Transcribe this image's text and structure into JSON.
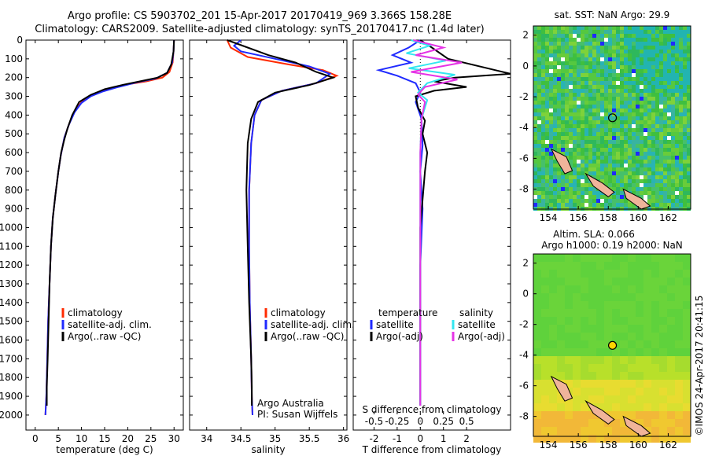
{
  "header": {
    "title_line1": "Argo profile: CS 5903702_201 15-Apr-2017 20170419_969 3.366S 158.28E",
    "title_line2": "Climatology: CARS2009. Satellite-adjusted climatology: synTS_20170417.nc (1.4d later)"
  },
  "colors": {
    "climatology": "#ff2a00",
    "satellite": "#1f2aff",
    "argo": "#000000",
    "satellite_salinity": "#33e6f0",
    "argo_salinity": "#e633e6"
  },
  "depth_axis": {
    "ticks": [
      0,
      100,
      200,
      300,
      400,
      500,
      600,
      700,
      800,
      900,
      1000,
      1100,
      1200,
      1300,
      1400,
      1500,
      1600,
      1700,
      1800,
      1900,
      2000
    ],
    "range": [
      0,
      2080
    ]
  },
  "chart_data": [
    {
      "type": "line",
      "id": "temperature",
      "xlabel": "temperature (deg C)",
      "xticks": [
        0,
        5,
        10,
        15,
        20,
        25,
        30
      ],
      "xlim": [
        -2,
        32
      ],
      "legend": [
        "climatology",
        "satellite-adj. clim.",
        "Argo(..raw -QC)"
      ],
      "series": [
        {
          "name": "climatology",
          "color_key": "climatology",
          "points": [
            [
              30,
              0
            ],
            [
              29.9,
              60
            ],
            [
              29.7,
              120
            ],
            [
              29,
              170
            ],
            [
              27.5,
              200
            ],
            [
              24,
              220
            ],
            [
              19,
              240
            ],
            [
              15,
              265
            ],
            [
              12.5,
              290
            ],
            [
              10,
              330
            ],
            [
              8.5,
              380
            ],
            [
              7.3,
              450
            ],
            [
              6.3,
              520
            ],
            [
              5.5,
              620
            ],
            [
              5,
              700
            ],
            [
              4.4,
              820
            ],
            [
              3.8,
              950
            ],
            [
              3.4,
              1100
            ],
            [
              3.1,
              1300
            ],
            [
              2.8,
              1500
            ],
            [
              2.6,
              1700
            ],
            [
              2.4,
              1900
            ],
            [
              2.2,
              2000
            ]
          ]
        },
        {
          "name": "satellite-adj. clim.",
          "color_key": "satellite",
          "points": [
            [
              30,
              0
            ],
            [
              29.9,
              60
            ],
            [
              29.6,
              120
            ],
            [
              28.5,
              175
            ],
            [
              26,
              205
            ],
            [
              22,
              225
            ],
            [
              18,
              250
            ],
            [
              14.5,
              275
            ],
            [
              12,
              300
            ],
            [
              10,
              335
            ],
            [
              8.5,
              385
            ],
            [
              7.3,
              450
            ],
            [
              6.3,
              520
            ],
            [
              5.5,
              620
            ],
            [
              5,
              700
            ],
            [
              4.4,
              820
            ],
            [
              3.8,
              950
            ],
            [
              3.4,
              1100
            ],
            [
              3.1,
              1300
            ],
            [
              2.8,
              1500
            ],
            [
              2.6,
              1700
            ],
            [
              2.4,
              1900
            ],
            [
              2.2,
              2000
            ]
          ]
        },
        {
          "name": "Argo(..raw -QC)",
          "color_key": "argo",
          "points": [
            [
              30,
              0
            ],
            [
              29.9,
              60
            ],
            [
              29.4,
              130
            ],
            [
              28.5,
              175
            ],
            [
              26.5,
              200
            ],
            [
              23,
              218
            ],
            [
              19,
              238
            ],
            [
              15,
              262
            ],
            [
              12,
              292
            ],
            [
              9.5,
              330
            ],
            [
              8,
              400
            ],
            [
              7,
              470
            ],
            [
              6.3,
              530
            ],
            [
              5.6,
              600
            ],
            [
              5,
              700
            ],
            [
              4.4,
              820
            ],
            [
              3.8,
              950
            ],
            [
              3.4,
              1100
            ],
            [
              3.1,
              1300
            ],
            [
              2.9,
              1500
            ],
            [
              2.7,
              1700
            ],
            [
              2.5,
              1850
            ],
            [
              2.5,
              1950
            ]
          ]
        }
      ]
    },
    {
      "type": "line",
      "id": "salinity",
      "xlabel": "salinity",
      "xticks": [
        34,
        34.5,
        35,
        35.5,
        36
      ],
      "xtick_labels": [
        "34",
        "34.5",
        "35",
        "35.5",
        "36"
      ],
      "xlim": [
        33.75,
        36.05
      ],
      "legend": [
        "climatology",
        "satellite-adj. clim.",
        "Argo(..raw -QC)"
      ],
      "annotation": [
        "Argo Australia",
        "PI: Susan Wijffels"
      ],
      "series": [
        {
          "name": "climatology",
          "color_key": "climatology",
          "points": [
            [
              34.3,
              0
            ],
            [
              34.35,
              40
            ],
            [
              34.6,
              90
            ],
            [
              35.2,
              130
            ],
            [
              35.7,
              160
            ],
            [
              35.9,
              190
            ],
            [
              35.6,
              230
            ],
            [
              35.1,
              270
            ],
            [
              34.8,
              320
            ],
            [
              34.7,
              400
            ],
            [
              34.65,
              550
            ],
            [
              34.62,
              800
            ],
            [
              34.62,
              1100
            ],
            [
              34.63,
              1400
            ],
            [
              34.65,
              1700
            ],
            [
              34.66,
              1900
            ],
            [
              34.67,
              2000
            ]
          ]
        },
        {
          "name": "satellite-adj. clim.",
          "color_key": "satellite",
          "points": [
            [
              34.5,
              0
            ],
            [
              34.4,
              30
            ],
            [
              34.5,
              60
            ],
            [
              35.0,
              100
            ],
            [
              35.5,
              140
            ],
            [
              35.8,
              180
            ],
            [
              35.6,
              230
            ],
            [
              35.1,
              270
            ],
            [
              34.8,
              320
            ],
            [
              34.7,
              400
            ],
            [
              34.65,
              550
            ],
            [
              34.62,
              800
            ],
            [
              34.62,
              1100
            ],
            [
              34.63,
              1400
            ],
            [
              34.65,
              1700
            ],
            [
              34.66,
              1900
            ],
            [
              34.67,
              2000
            ]
          ]
        },
        {
          "name": "Argo(..raw -QC)",
          "color_key": "argo",
          "points": [
            [
              34.3,
              0
            ],
            [
              34.6,
              40
            ],
            [
              34.9,
              80
            ],
            [
              35.3,
              120
            ],
            [
              35.6,
              170
            ],
            [
              35.85,
              200
            ],
            [
              35.5,
              240
            ],
            [
              35.0,
              280
            ],
            [
              34.75,
              330
            ],
            [
              34.65,
              420
            ],
            [
              34.6,
              550
            ],
            [
              34.58,
              800
            ],
            [
              34.6,
              1100
            ],
            [
              34.62,
              1400
            ],
            [
              34.65,
              1700
            ],
            [
              34.66,
              1850
            ],
            [
              34.66,
              1950
            ]
          ]
        }
      ]
    },
    {
      "type": "line",
      "id": "difference",
      "xlabel": "T difference from climatology",
      "xticks": [
        -2,
        -1,
        0,
        1,
        2
      ],
      "xlim": [
        -2.9,
        3.9
      ],
      "secondary_xlabel": "S difference from climatology",
      "secondary_xticks": [
        -0.5,
        -0.25,
        0,
        0.25,
        0.5
      ],
      "secondary_xtick_labels": [
        "-0.5",
        "-0.25",
        "0",
        "0.25",
        "0.5"
      ],
      "secondary_scale": 4,
      "legend_temperature": [
        "temperature",
        "satellite",
        "Argo(-adj)"
      ],
      "legend_salinity": [
        "salinity",
        "satellite",
        "Argo(-adj)"
      ],
      "series": [
        {
          "name": "T satellite",
          "color_key": "satellite",
          "points": [
            [
              0,
              0
            ],
            [
              -0.5,
              40
            ],
            [
              -1.2,
              80
            ],
            [
              -0.4,
              120
            ],
            [
              -1.8,
              160
            ],
            [
              -1,
              190
            ],
            [
              -0.2,
              230
            ],
            [
              0,
              280
            ],
            [
              -0.2,
              330
            ],
            [
              0.05,
              420
            ],
            [
              0.1,
              560
            ],
            [
              0,
              700
            ],
            [
              0.1,
              900
            ],
            [
              0,
              1200
            ],
            [
              0,
              1500
            ],
            [
              0,
              1800
            ],
            [
              0,
              1950
            ]
          ]
        },
        {
          "name": "T Argo(-adj)",
          "color_key": "argo",
          "points": [
            [
              0,
              0
            ],
            [
              0.5,
              40
            ],
            [
              1.2,
              100
            ],
            [
              3.9,
              180
            ],
            [
              1.5,
              200
            ],
            [
              0.6,
              220
            ],
            [
              2,
              250
            ],
            [
              0.6,
              270
            ],
            [
              -0.2,
              300
            ],
            [
              -0.1,
              360
            ],
            [
              0.2,
              430
            ],
            [
              0.1,
              500
            ],
            [
              0.3,
              600
            ],
            [
              0.2,
              700
            ],
            [
              0.1,
              850
            ],
            [
              0,
              1000
            ],
            [
              0,
              1300
            ],
            [
              0,
              1600
            ],
            [
              0,
              1900
            ],
            [
              0,
              1950
            ]
          ]
        },
        {
          "name": "S satellite",
          "color_key": "satellite_salinity",
          "points": [
            [
              -0.4,
              0
            ],
            [
              0.4,
              30
            ],
            [
              -0.6,
              70
            ],
            [
              1.1,
              110
            ],
            [
              -0.5,
              150
            ],
            [
              1.5,
              185
            ],
            [
              0.3,
              230
            ],
            [
              -0.1,
              280
            ],
            [
              0.3,
              320
            ],
            [
              0.05,
              420
            ],
            [
              0,
              600
            ],
            [
              0,
              900
            ],
            [
              0,
              1200
            ],
            [
              0,
              1500
            ],
            [
              0,
              1800
            ],
            [
              0,
              1950
            ]
          ]
        },
        {
          "name": "S Argo(-adj)",
          "color_key": "argo_salinity",
          "points": [
            [
              -0.3,
              0
            ],
            [
              1,
              40
            ],
            [
              -0.2,
              80
            ],
            [
              1.8,
              120
            ],
            [
              -0.4,
              170
            ],
            [
              1.6,
              210
            ],
            [
              0.2,
              250
            ],
            [
              -0.1,
              290
            ],
            [
              0.2,
              330
            ],
            [
              0.05,
              420
            ],
            [
              0,
              600
            ],
            [
              0,
              900
            ],
            [
              0,
              1200
            ],
            [
              0,
              1500
            ],
            [
              0,
              1800
            ],
            [
              0,
              1950
            ]
          ]
        }
      ]
    },
    {
      "type": "heatmap",
      "id": "sst_map",
      "title": "sat. SST: NaN Argo: 29.9",
      "xticks": [
        154,
        156,
        158,
        160,
        162
      ],
      "yticks": [
        2,
        0,
        -2,
        -4,
        -6,
        -8
      ],
      "xlim": [
        153,
        163.5
      ],
      "ylim": [
        -9.3,
        2.6
      ],
      "marker": [
        158.28,
        -3.366
      ]
    },
    {
      "type": "heatmap",
      "id": "sla_map",
      "title_line1": "Altim. SLA: 0.066",
      "title_line2": "Argo h1000: 0.19 h2000: NaN",
      "xticks": [
        154,
        156,
        158,
        160,
        162
      ],
      "yticks": [
        2,
        0,
        -2,
        -4,
        -6,
        -8
      ],
      "xlim": [
        153,
        163.5
      ],
      "ylim": [
        -9.3,
        2.6
      ],
      "marker": [
        158.28,
        -3.366
      ]
    }
  ],
  "side_label": "©IMOS 24-Apr-2017 20:41:15"
}
